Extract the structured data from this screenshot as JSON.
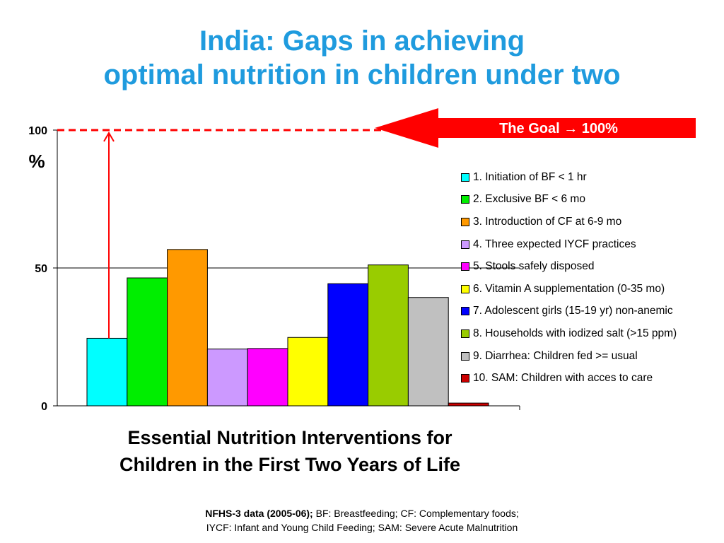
{
  "title": {
    "line1": "India: Gaps in achieving",
    "line2": "optimal nutrition in children under two"
  },
  "goal": {
    "label": "The Goal → 100%",
    "color": "#ff0000"
  },
  "chart_data": {
    "type": "bar",
    "ylabel": "%",
    "xlabel_line1": "Essential Nutrition Interventions for",
    "xlabel_line2": "Children in the First Two Years of Life",
    "ylim": [
      0,
      100
    ],
    "yticks": [
      "0",
      "50",
      "100"
    ],
    "goal_value": 100,
    "gap_arrow_bar": 1,
    "grid": "horizontal at 50",
    "legend_position": "right",
    "series": [
      {
        "label": "1. Initiation of BF < 1 hr",
        "value": 24.5,
        "color": "#00ffff"
      },
      {
        "label": "2. Exclusive BF < 6 mo",
        "value": 46.4,
        "color": "#00ee00"
      },
      {
        "label": "3. Introduction of CF at 6-9 mo",
        "value": 56.7,
        "color": "#ff9900"
      },
      {
        "label": "4. Three expected IYCF practices",
        "value": 20.6,
        "color": "#cc99ff"
      },
      {
        "label": "5. Stools safely disposed",
        "value": 20.8,
        "color": "#ff00ff"
      },
      {
        "label": "6. Vitamin A supplementation (0-35 mo)",
        "value": 24.8,
        "color": "#ffff00"
      },
      {
        "label": "7. Adolescent girls (15-19 yr) non-anemic",
        "value": 44.3,
        "color": "#0000ff"
      },
      {
        "label": "8. Households with iodized salt (>15 ppm)",
        "value": 51.1,
        "color": "#99cc00"
      },
      {
        "label": "9. Diarrhea: Children fed >= usual",
        "value": 39.3,
        "color": "#c0c0c0"
      },
      {
        "label": "10. SAM: Children with acces to care",
        "value": 1.0,
        "color": "#cc0000"
      }
    ]
  },
  "footnote": {
    "bold": "NFHS-3 data (2005-06);",
    "line1_rest": " BF: Breastfeeding; CF: Complementary foods;",
    "line2": "IYCF: Infant and Young Child Feeding; SAM: Severe Acute Malnutrition"
  }
}
